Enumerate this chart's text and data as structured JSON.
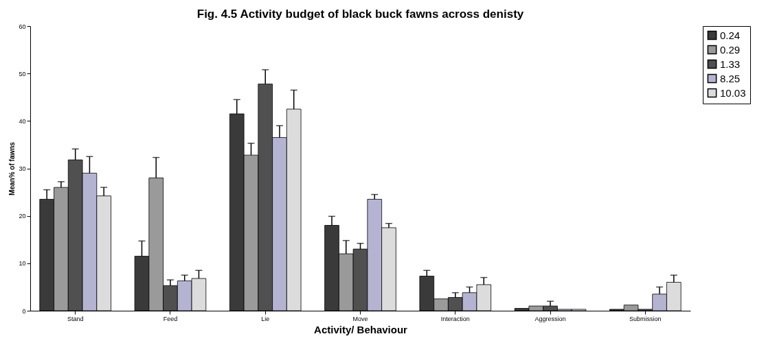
{
  "chart_data": {
    "type": "bar",
    "title": "Fig. 4.5 Activity budget of black buck fawns across denisty",
    "xlabel": "Activity/ Behaviour",
    "ylabel": "Mean% of fawns",
    "categories": [
      "Stand",
      "Feed",
      "Lie",
      "Move",
      "Interaction",
      "Aggression",
      "Submission"
    ],
    "series": [
      {
        "name": "0.24",
        "color": "#3a3a3a",
        "values": [
          23.5,
          11.5,
          41.5,
          18,
          7.3,
          0.5,
          0.3
        ],
        "errors": [
          [
            23.5,
            25.5
          ],
          [
            11.5,
            14.7
          ],
          [
            41.5,
            44.5
          ],
          [
            18,
            19.9
          ],
          [
            7.3,
            8.5
          ],
          null,
          null
        ]
      },
      {
        "name": "0.29",
        "color": "#9a9a9a",
        "values": [
          26,
          28,
          32.8,
          12,
          2.5,
          1,
          1.2
        ],
        "errors": [
          [
            26,
            27.2
          ],
          [
            28,
            32.3
          ],
          [
            32.8,
            35.3
          ],
          [
            12,
            14.8
          ],
          null,
          null,
          null
        ]
      },
      {
        "name": "1.33",
        "color": "#505050",
        "values": [
          31.8,
          5.3,
          47.8,
          13,
          2.8,
          1,
          0.3
        ],
        "errors": [
          [
            31.8,
            34.1
          ],
          [
            5.3,
            6.5
          ],
          [
            47.8,
            50.8
          ],
          [
            13,
            14.2
          ],
          [
            2.8,
            3.8
          ],
          [
            1,
            2
          ],
          null
        ]
      },
      {
        "name": "8.25",
        "color": "#b4b4d2",
        "values": [
          29,
          6.3,
          36.5,
          23.5,
          3.8,
          0.3,
          3.5
        ],
        "errors": [
          [
            29,
            32.5
          ],
          [
            6.3,
            7.5
          ],
          [
            36.5,
            39
          ],
          [
            23.5,
            24.5
          ],
          [
            3.8,
            5
          ],
          null,
          [
            3.5,
            5
          ]
        ]
      },
      {
        "name": "10.03",
        "color": "#dcdcdc",
        "values": [
          24.2,
          6.8,
          42.5,
          17.5,
          5.5,
          0.3,
          6
        ],
        "errors": [
          [
            24.2,
            26
          ],
          [
            6.8,
            8.5
          ],
          [
            42.5,
            46.5
          ],
          [
            17.5,
            18.4
          ],
          [
            5.5,
            7
          ],
          null,
          [
            6,
            7.5
          ]
        ]
      }
    ],
    "ylim": [
      0,
      60
    ],
    "yticks": [
      0,
      10,
      20,
      30,
      40,
      50,
      60
    ],
    "grid": false,
    "legend": "right"
  }
}
